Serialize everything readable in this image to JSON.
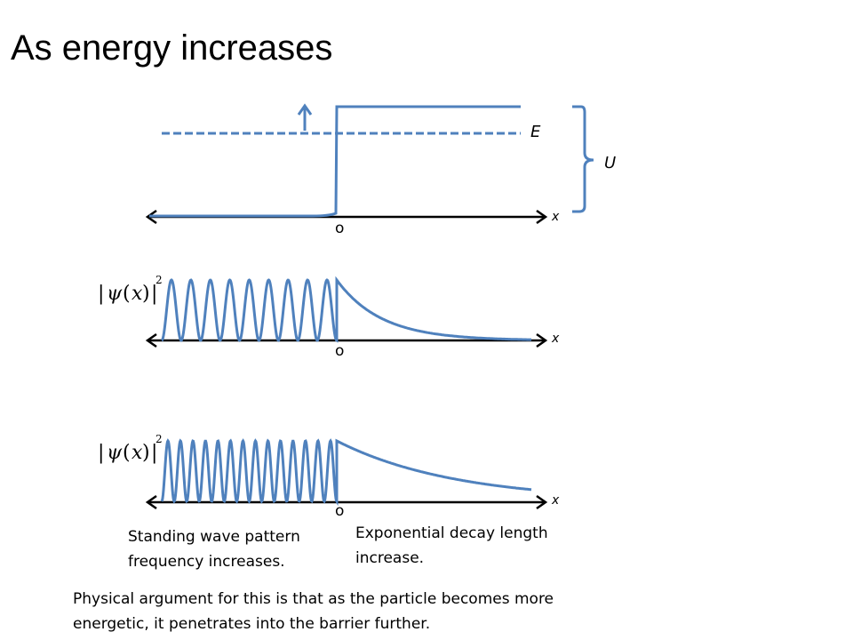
{
  "slide": {
    "title": "As energy increases"
  },
  "potential_diagram": {
    "energy_label": "E",
    "potential_label": "U",
    "x_axis_label": "x",
    "origin_label": "o",
    "stroke_color": "#4f81bd",
    "arrow_color": "#000000"
  },
  "wavefunction_plots": [
    {
      "y_label_parts": [
        "|",
        "ψ",
        "(",
        "x",
        ")",
        "|",
        "2"
      ],
      "x_axis_label": "x",
      "origin_label": "o",
      "oscillations": 9,
      "decay_rate": 0.02
    },
    {
      "y_label_parts": [
        "|",
        "ψ",
        "(",
        "x",
        ")",
        "|",
        "2"
      ],
      "x_axis_label": "x",
      "origin_label": "o",
      "oscillations": 14,
      "decay_rate": 0.0075
    }
  ],
  "captions": {
    "standing_wave": [
      "Standing wave pattern",
      "frequency increases."
    ],
    "decay": [
      "Exponential decay length",
      "increase."
    ],
    "argument": [
      "Physical argument for this is that as the particle becomes more",
      "energetic, it penetrates into the barrier further."
    ]
  }
}
